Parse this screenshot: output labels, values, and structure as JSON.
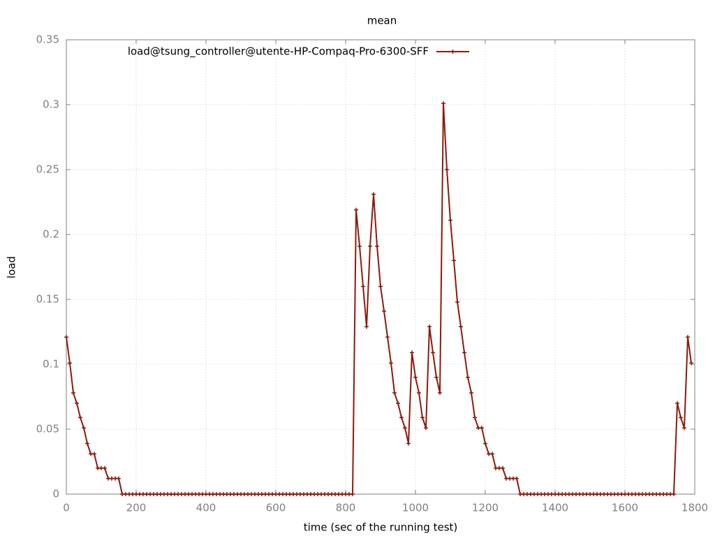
{
  "chart_data": {
    "type": "line",
    "title": "mean",
    "xlabel": "time (sec of the running test)",
    "ylabel": "load",
    "xlim": [
      0,
      1800
    ],
    "xticks": [
      0,
      200,
      400,
      600,
      800,
      1000,
      1200,
      1400,
      1600,
      1800
    ],
    "ylim": [
      0,
      0.35
    ],
    "yticks": [
      0,
      0.05,
      0.1,
      0.15,
      0.2,
      0.25,
      0.3,
      0.35
    ],
    "grid": true,
    "legend": "top-left",
    "x": [
      0,
      10,
      20,
      30,
      40,
      50,
      60,
      70,
      80,
      90,
      100,
      110,
      120,
      130,
      140,
      150,
      160,
      170,
      180,
      190,
      200,
      210,
      220,
      230,
      240,
      250,
      260,
      270,
      280,
      290,
      300,
      310,
      320,
      330,
      340,
      350,
      360,
      370,
      380,
      390,
      400,
      410,
      420,
      430,
      440,
      450,
      460,
      470,
      480,
      490,
      500,
      510,
      520,
      530,
      540,
      550,
      560,
      570,
      580,
      590,
      600,
      610,
      620,
      630,
      640,
      650,
      660,
      670,
      680,
      690,
      700,
      710,
      720,
      730,
      740,
      750,
      760,
      770,
      780,
      790,
      800,
      810,
      820,
      830,
      840,
      850,
      860,
      870,
      880,
      890,
      900,
      910,
      920,
      930,
      940,
      950,
      960,
      970,
      980,
      990,
      1000,
      1010,
      1020,
      1030,
      1040,
      1050,
      1060,
      1070,
      1080,
      1090,
      1100,
      1110,
      1120,
      1130,
      1140,
      1150,
      1160,
      1170,
      1180,
      1190,
      1200,
      1210,
      1220,
      1230,
      1240,
      1250,
      1260,
      1270,
      1280,
      1290,
      1300,
      1310,
      1320,
      1330,
      1340,
      1350,
      1360,
      1370,
      1380,
      1390,
      1400,
      1410,
      1420,
      1430,
      1440,
      1450,
      1460,
      1470,
      1480,
      1490,
      1500,
      1510,
      1520,
      1530,
      1540,
      1550,
      1560,
      1570,
      1580,
      1590,
      1600,
      1610,
      1620,
      1630,
      1640,
      1650,
      1660,
      1670,
      1680,
      1690,
      1700,
      1710,
      1720,
      1730,
      1740,
      1750,
      1760,
      1770,
      1780,
      1790
    ],
    "series": [
      {
        "name": "load@tsung_controller@utente-HP-Compaq-Pro-6300-SFF",
        "color": "#8b1a0e",
        "values": [
          0.121,
          0.101,
          0.078,
          0.07,
          0.059,
          0.051,
          0.039,
          0.031,
          0.031,
          0.02,
          0.02,
          0.02,
          0.012,
          0.012,
          0.012,
          0.012,
          0,
          0,
          0,
          0,
          0,
          0,
          0,
          0,
          0,
          0,
          0,
          0,
          0,
          0,
          0,
          0,
          0,
          0,
          0,
          0,
          0,
          0,
          0,
          0,
          0,
          0,
          0,
          0,
          0,
          0,
          0,
          0,
          0,
          0,
          0,
          0,
          0,
          0,
          0,
          0,
          0,
          0,
          0,
          0,
          0,
          0,
          0,
          0,
          0,
          0,
          0,
          0,
          0,
          0,
          0,
          0,
          0,
          0,
          0,
          0,
          0,
          0,
          0,
          0,
          0,
          0,
          0,
          0.219,
          0.191,
          0.16,
          0.129,
          0.191,
          0.231,
          0.191,
          0.16,
          0.141,
          0.121,
          0.101,
          0.078,
          0.07,
          0.059,
          0.051,
          0.039,
          0.109,
          0.09,
          0.078,
          0.059,
          0.051,
          0.129,
          0.109,
          0.09,
          0.078,
          0.301,
          0.25,
          0.211,
          0.18,
          0.148,
          0.129,
          0.109,
          0.09,
          0.078,
          0.059,
          0.051,
          0.051,
          0.039,
          0.031,
          0.031,
          0.02,
          0.02,
          0.02,
          0.012,
          0.012,
          0.012,
          0.012,
          0,
          0,
          0,
          0,
          0,
          0,
          0,
          0,
          0,
          0,
          0,
          0,
          0,
          0,
          0,
          0,
          0,
          0,
          0,
          0,
          0,
          0,
          0,
          0,
          0,
          0,
          0,
          0,
          0,
          0,
          0,
          0,
          0,
          0,
          0,
          0,
          0,
          0,
          0,
          0,
          0,
          0,
          0,
          0,
          0,
          0.07,
          0.059,
          0.051,
          0.121,
          0.101
        ]
      }
    ]
  }
}
